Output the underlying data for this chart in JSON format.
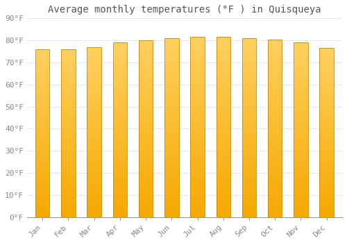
{
  "title": "Average monthly temperatures (°F ) in Quisqueya",
  "months": [
    "Jan",
    "Feb",
    "Mar",
    "Apr",
    "May",
    "Jun",
    "Jul",
    "Aug",
    "Sep",
    "Oct",
    "Nov",
    "Dec"
  ],
  "values": [
    76.0,
    76.0,
    77.0,
    79.0,
    80.0,
    81.0,
    81.5,
    81.5,
    81.0,
    80.5,
    79.0,
    76.5
  ],
  "bar_color_bottom": "#F5A800",
  "bar_color_top": "#FFD060",
  "background_color": "#FFFFFF",
  "grid_color": "#DDDDDD",
  "text_color": "#888888",
  "title_color": "#555555",
  "ylim": [
    0,
    90
  ],
  "ytick_interval": 10,
  "title_fontsize": 10,
  "tick_fontsize": 8,
  "bar_width": 0.55
}
